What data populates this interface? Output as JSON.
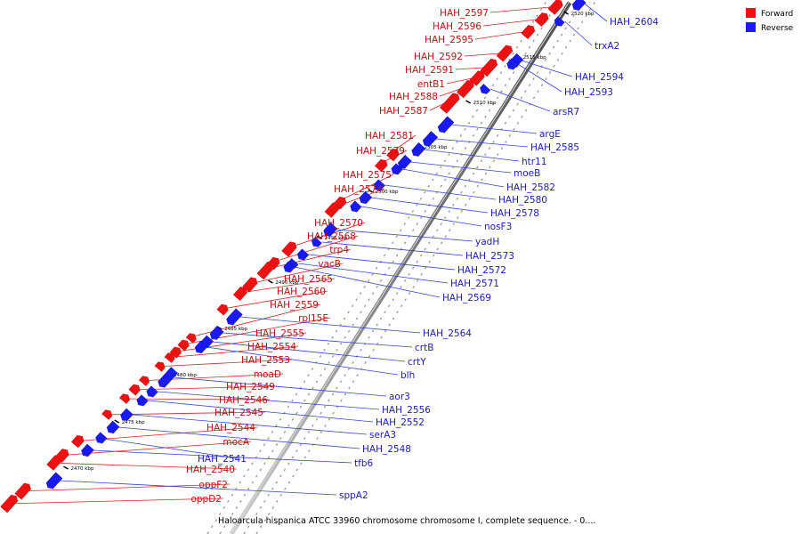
{
  "caption": "Haloarcula hispanica ATCC 33960 chromosome chromosome I, complete sequence. - 0....",
  "colors": {
    "forward": "#ee1111",
    "reverse": "#1a1aee",
    "backbone": "#8c8c8c",
    "line_forward": "#dd2222",
    "line_reverse": "#3344dd"
  },
  "legend": [
    {
      "label": "Forward",
      "color": "#ee1111"
    },
    {
      "label": "Reverse",
      "color": "#1a1aee"
    }
  ],
  "ticks": [
    "2520 kbp",
    "2515 kbp",
    "2510 kbp",
    "2505 kbp",
    "2500 kbp",
    "2495 kbp",
    "2490 kbp",
    "2485 kbp",
    "2480 kbp",
    "2475 kbp",
    "2470 kbp"
  ],
  "forward_genes": [
    "HAH_2597",
    "HAH_2596",
    "HAH_2595",
    "HAH_2592",
    "HAH_2591",
    "entB1",
    "HAH_2588",
    "HAH_2587",
    "HAH_2581",
    "HAH_2579",
    "HAH_2575",
    "HAH_2574",
    "HAH_2570",
    "HAH_2568",
    "trp4",
    "vacB",
    "HAH_2565",
    "HAH_2560",
    "HAH_2559",
    "rpl15E",
    "HAH_2555",
    "HAH_2554",
    "HAH_2553",
    "moaD",
    "HAH_2549",
    "HAH_2546",
    "HAH_2545",
    "HAH_2544",
    "mocA",
    "HAH_2540",
    "oppF2",
    "oppD2"
  ],
  "reverse_genes": [
    "HAH_2604",
    "trxA2",
    "HAH_2594",
    "HAH_2593",
    "arsR7",
    "argE",
    "HAH_2585",
    "htr11",
    "moeB",
    "HAH_2582",
    "HAH_2580",
    "HAH_2578",
    "nosF3",
    "yadH",
    "HAH_2573",
    "HAH_2572",
    "HAH_2571",
    "HAH_2569",
    "HAH_2564",
    "crtB",
    "crtY",
    "blh",
    "aor3",
    "HAH_2556",
    "HAH_2552",
    "serA3",
    "HAH_2548",
    "HAH_2541",
    "tfb6",
    "sppA2"
  ]
}
